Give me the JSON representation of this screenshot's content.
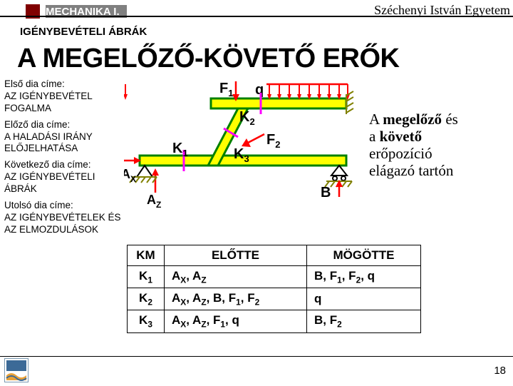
{
  "header": {
    "course": "MECHANIKA I.",
    "university": "Széchenyi István Egyetem",
    "subtitle": "IGÉNYBEVÉTELI ÁBRÁK"
  },
  "title": "A MEGELŐZŐ-KÖVETŐ ERŐK",
  "sidebar": {
    "first_label": "Első dia címe:",
    "first_val": "AZ IGÉNYBEVÉTEL FOGALMA",
    "prev_label": "Előző dia címe:",
    "prev_val": "A HALADÁSI IRÁNY ELŐJELHATÁSA",
    "next_label": "Következő dia címe:",
    "next_val": "AZ IGÉNYBEVÉTELI ÁBRÁK",
    "last_label": "Utolsó dia címe:",
    "last_val": "AZ IGÉNYBEVÉTELEK ÉS AZ ELMOZDULÁSOK"
  },
  "caption": {
    "line1a": "A ",
    "line1b": "megelőző",
    "line1c": " és",
    "line2a": "a ",
    "line2b": "követő",
    "line3": "erőpozíció",
    "line4": "elágazó tartón"
  },
  "diagram": {
    "colors": {
      "beam_fill": "#ffff00",
      "beam_stroke": "#008000",
      "force": "#ff0000",
      "label": "#000000",
      "section": "#ff00ff",
      "hatch": "#808000"
    },
    "labels": {
      "F1": "F",
      "F1s": "1",
      "F2": "F",
      "F2s": "2",
      "q": "q",
      "K1": "K",
      "K1s": "1",
      "K2": "K",
      "K2s": "2",
      "K3": "K",
      "K3s": "3",
      "Ax": "A",
      "Axs": "X",
      "Az": "A",
      "Azs": "Z",
      "B": "B"
    }
  },
  "table": {
    "head": [
      "KM",
      "ELŐTTE",
      "MÖGÖTTE"
    ],
    "rows": [
      {
        "km": "K",
        "kms": "1",
        "before": "A<sub>X</sub>, A<sub>Z</sub>",
        "after": "B, F<sub>1</sub>, F<sub>2</sub>, q"
      },
      {
        "km": "K",
        "kms": "2",
        "before": "A<sub>X</sub>, A<sub>Z</sub>, B, F<sub>1</sub>, F<sub>2</sub>",
        "after": "q"
      },
      {
        "km": "K",
        "kms": "3",
        "before": "A<sub>X</sub>, A<sub>Z</sub>, F<sub>1</sub>, q",
        "after": "B, F<sub>2</sub>"
      }
    ]
  },
  "page_number": "18",
  "style": {
    "bg": "#ffffff",
    "header_bg": "#808080",
    "header_sq": "#800000",
    "text": "#000000"
  }
}
